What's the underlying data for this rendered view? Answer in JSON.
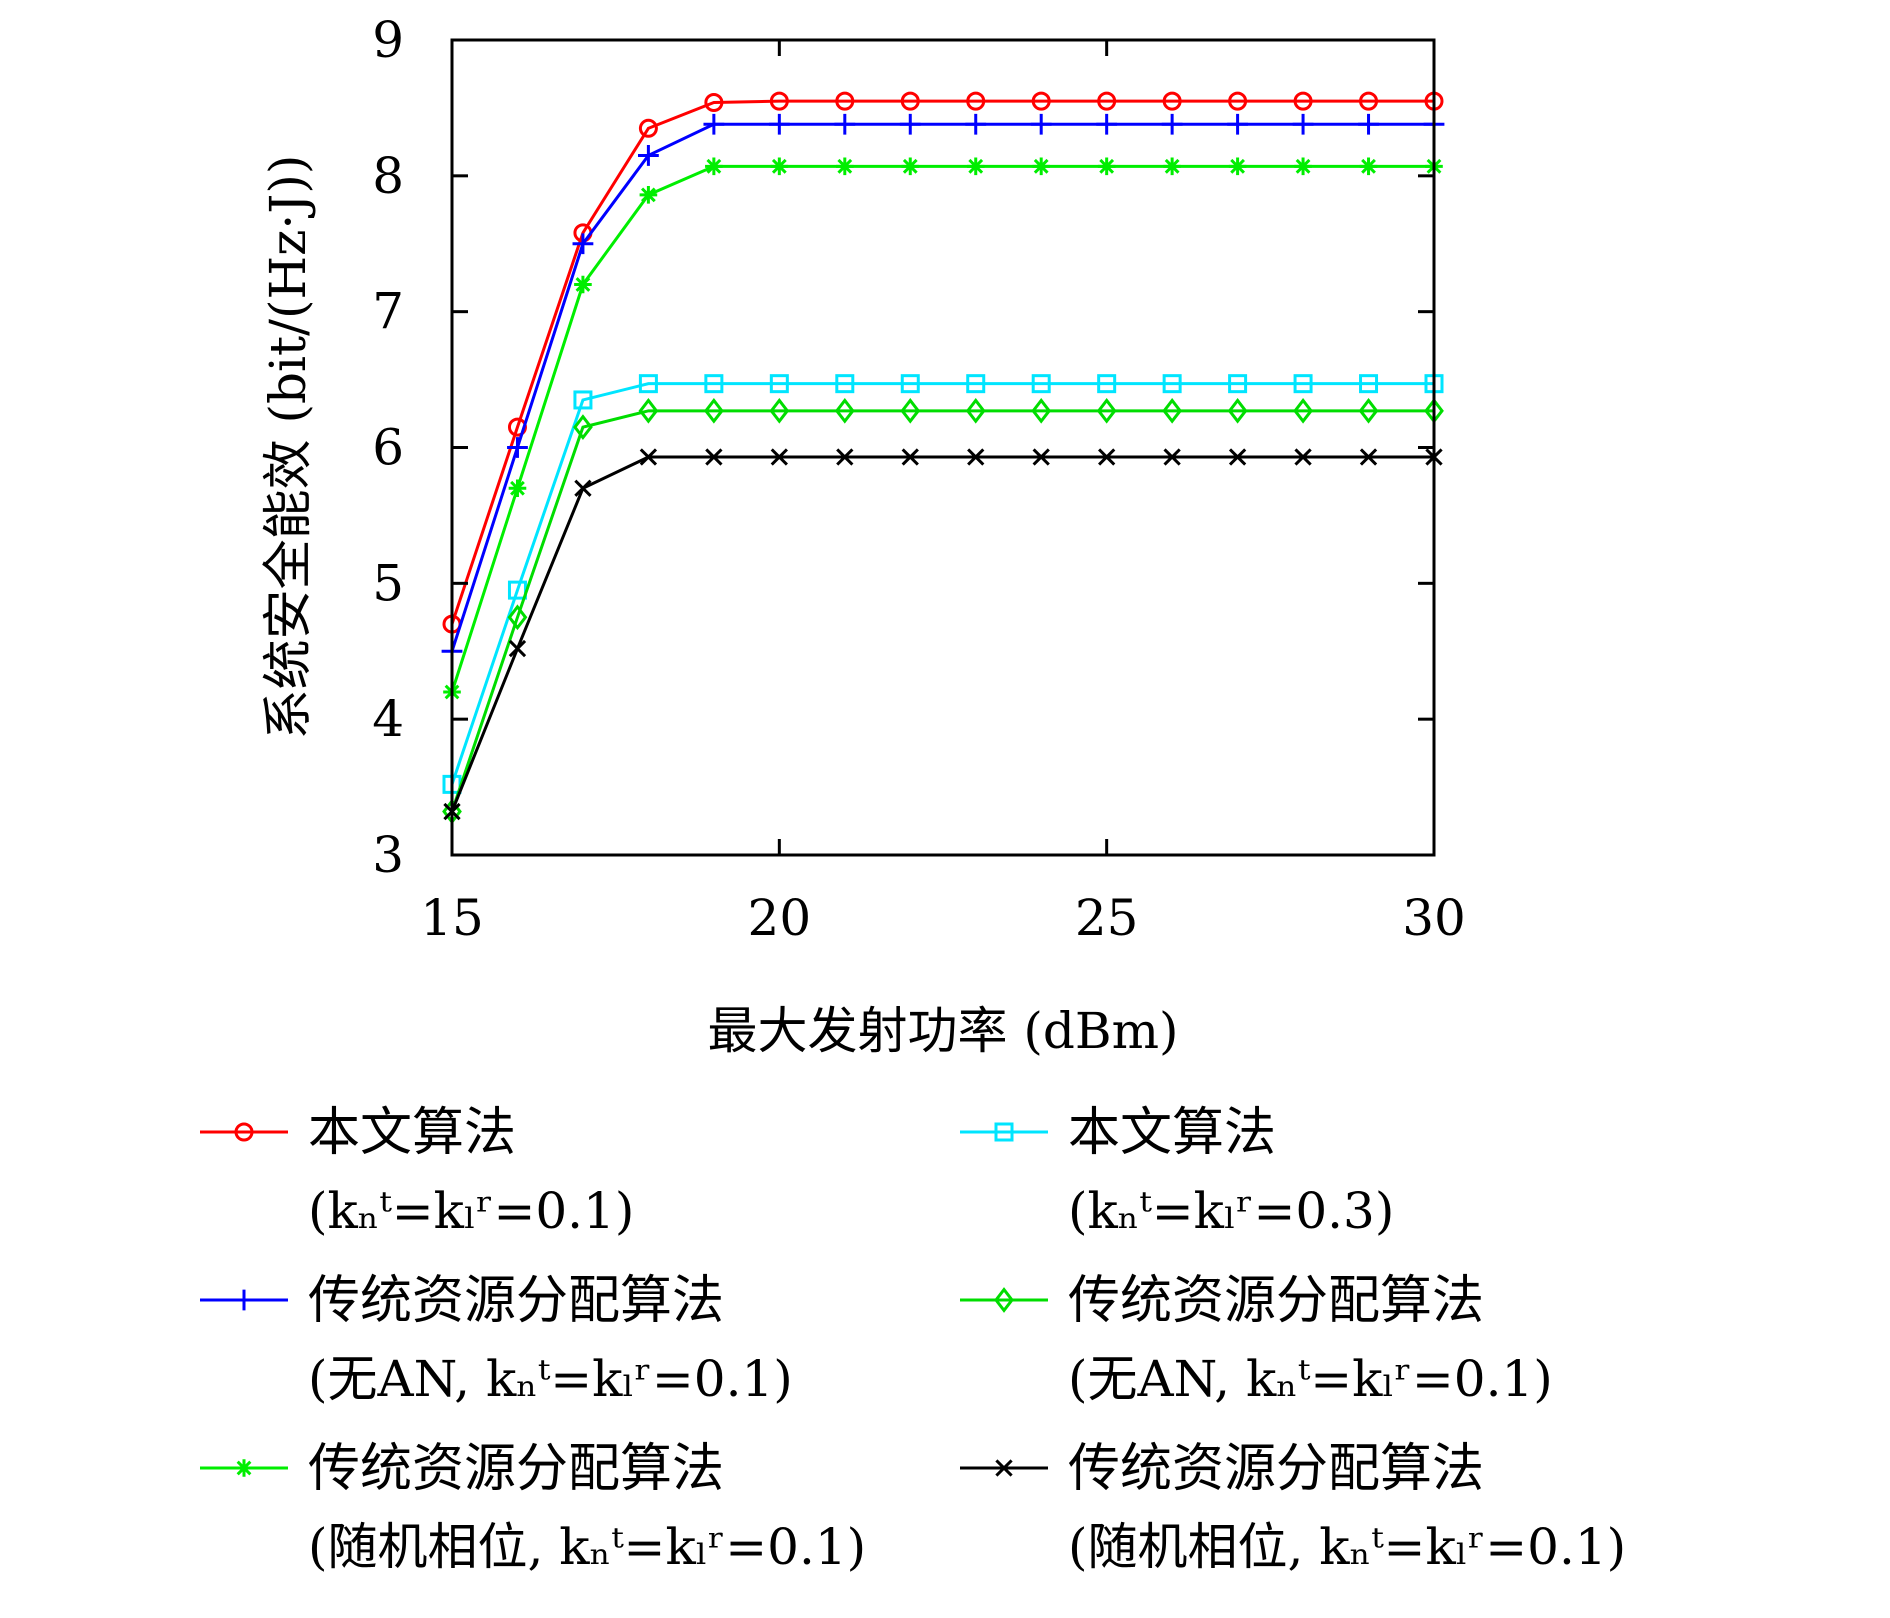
{
  "chart_data": {
    "type": "line",
    "title": "",
    "xlabel": "最大发射功率 (dBm)",
    "ylabel": "系统安全能效 (bit/(Hz·J))",
    "xlim": [
      15,
      30
    ],
    "ylim": [
      3,
      9
    ],
    "xticks": [
      15,
      20,
      25,
      30
    ],
    "yticks": [
      3,
      4,
      5,
      6,
      7,
      8,
      9
    ],
    "grid": false,
    "legend_placement": "bottom",
    "x": [
      15,
      16,
      17,
      18,
      19,
      20,
      21,
      22,
      23,
      24,
      25,
      26,
      27,
      28,
      29,
      30
    ],
    "series": [
      {
        "name": "本文算法",
        "name_sub": "(kₙᵗ=kₗʳ=0.1)",
        "color": "#ff0000",
        "marker": "circle",
        "values": [
          4.7,
          6.15,
          7.58,
          8.35,
          8.54,
          8.55,
          8.55,
          8.55,
          8.55,
          8.55,
          8.55,
          8.55,
          8.55,
          8.55,
          8.55,
          8.55
        ]
      },
      {
        "name": "本文算法",
        "name_sub": "(kₙᵗ=kₗʳ=0.3)",
        "color": "#00e5ff",
        "marker": "square",
        "values": [
          3.52,
          4.95,
          6.35,
          6.47,
          6.47,
          6.47,
          6.47,
          6.47,
          6.47,
          6.47,
          6.47,
          6.47,
          6.47,
          6.47,
          6.47,
          6.47
        ]
      },
      {
        "name": "传统资源分配算法",
        "name_sub": "(无AN, kₙᵗ=kₗʳ=0.1)",
        "color": "#0000ff",
        "marker": "plus",
        "values": [
          4.5,
          6.0,
          7.5,
          8.15,
          8.38,
          8.38,
          8.38,
          8.38,
          8.38,
          8.38,
          8.38,
          8.38,
          8.38,
          8.38,
          8.38,
          8.38
        ]
      },
      {
        "name": "传统资源分配算法",
        "name_sub": "(无AN, kₙᵗ=kₗʳ=0.1)",
        "color": "#00dd00",
        "marker": "diamond",
        "values": [
          3.32,
          4.75,
          6.15,
          6.27,
          6.27,
          6.27,
          6.27,
          6.27,
          6.27,
          6.27,
          6.27,
          6.27,
          6.27,
          6.27,
          6.27,
          6.27
        ]
      },
      {
        "name": "传统资源分配算法",
        "name_sub": "(随机相位, kₙᵗ=kₗʳ=0.1)",
        "color": "#00ee00",
        "marker": "asterisk",
        "values": [
          4.2,
          5.7,
          7.2,
          7.86,
          8.07,
          8.07,
          8.07,
          8.07,
          8.07,
          8.07,
          8.07,
          8.07,
          8.07,
          8.07,
          8.07,
          8.07
        ]
      },
      {
        "name": "传统资源分配算法",
        "name_sub": "(随机相位, kₙᵗ=kₗʳ=0.1)",
        "color": "#000000",
        "marker": "x",
        "values": [
          3.32,
          4.52,
          5.7,
          5.93,
          5.93,
          5.93,
          5.93,
          5.93,
          5.93,
          5.93,
          5.93,
          5.93,
          5.93,
          5.93,
          5.93,
          5.93
        ]
      }
    ]
  }
}
